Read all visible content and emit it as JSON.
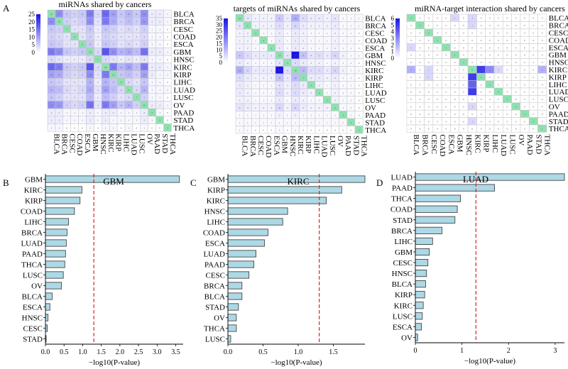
{
  "panel_labels": {
    "A": "A",
    "B": "B",
    "C": "C",
    "D": "D"
  },
  "chart_data": [
    {
      "type": "heatmap",
      "id": "heatmap-mirnas",
      "title": "miRNAs  shared by cancers",
      "rows": [
        "BLCA",
        "BRCA",
        "CESC",
        "COAD",
        "ESCA",
        "GBM",
        "HNSC",
        "KIRC",
        "KIRP",
        "LIHC",
        "LUAD",
        "LUSC",
        "OV",
        "PAAD",
        "STAD",
        "THCA"
      ],
      "cols": [
        "BLCA",
        "BRCA",
        "CESC",
        "COAD",
        "ESCA",
        "GBM",
        "HNSC",
        "KIRC",
        "KIRP",
        "LIHC",
        "LUAD",
        "LUSC",
        "OV",
        "PAAD",
        "STAD",
        "THCA"
      ],
      "colorbar": {
        "ticks": [
          "25",
          "20",
          "15",
          "10",
          "5",
          "0"
        ],
        "min": 0,
        "max": 25
      },
      "diagonal_color": "#8fe0b0",
      "matrix": [
        [
          16,
          12,
          6,
          5,
          6,
          14,
          4,
          16,
          10,
          6,
          8,
          6,
          12,
          2,
          2,
          1
        ],
        [
          12,
          16,
          5,
          4,
          5,
          12,
          3,
          14,
          9,
          5,
          7,
          5,
          11,
          2,
          2,
          1
        ],
        [
          6,
          5,
          7,
          3,
          3,
          6,
          2,
          6,
          5,
          3,
          4,
          3,
          5,
          1,
          1,
          0
        ],
        [
          5,
          4,
          3,
          6,
          3,
          5,
          2,
          5,
          4,
          3,
          3,
          3,
          4,
          1,
          1,
          0
        ],
        [
          6,
          5,
          3,
          3,
          6,
          6,
          2,
          6,
          5,
          3,
          4,
          3,
          5,
          1,
          1,
          0
        ],
        [
          14,
          12,
          6,
          5,
          6,
          22,
          4,
          18,
          12,
          8,
          9,
          7,
          15,
          2,
          2,
          1
        ],
        [
          4,
          3,
          2,
          2,
          2,
          4,
          5,
          4,
          3,
          2,
          3,
          2,
          3,
          1,
          1,
          0
        ],
        [
          16,
          14,
          6,
          5,
          6,
          18,
          4,
          24,
          14,
          8,
          10,
          7,
          14,
          2,
          2,
          1
        ],
        [
          10,
          9,
          5,
          4,
          5,
          12,
          3,
          14,
          14,
          6,
          7,
          5,
          10,
          2,
          1,
          1
        ],
        [
          6,
          5,
          3,
          3,
          3,
          8,
          2,
          8,
          6,
          9,
          4,
          3,
          6,
          1,
          1,
          0
        ],
        [
          8,
          7,
          4,
          3,
          4,
          9,
          3,
          10,
          7,
          4,
          11,
          4,
          8,
          1,
          1,
          1
        ],
        [
          6,
          5,
          3,
          3,
          3,
          7,
          2,
          7,
          5,
          3,
          4,
          7,
          5,
          1,
          1,
          0
        ],
        [
          12,
          11,
          5,
          4,
          5,
          15,
          3,
          14,
          10,
          6,
          8,
          5,
          16,
          2,
          2,
          1
        ],
        [
          2,
          2,
          1,
          1,
          1,
          2,
          1,
          2,
          2,
          1,
          1,
          1,
          2,
          3,
          1,
          0
        ],
        [
          2,
          2,
          1,
          1,
          1,
          2,
          1,
          2,
          1,
          1,
          1,
          1,
          2,
          1,
          3,
          0
        ],
        [
          1,
          1,
          0,
          0,
          0,
          1,
          0,
          1,
          1,
          0,
          1,
          0,
          1,
          0,
          0,
          2
        ]
      ]
    },
    {
      "type": "heatmap",
      "id": "heatmap-targets",
      "title": "targets of miRNAs shared by cancers",
      "rows": [
        "BLCA",
        "BRCA",
        "CESC",
        "COAD",
        "ESCA",
        "GBM",
        "HNSC",
        "KIRC",
        "KIRP",
        "LIHC",
        "LUAD",
        "LUSC",
        "OV",
        "PAAD",
        "STAD",
        "THCA"
      ],
      "cols": [
        "BLCA",
        "BRCA",
        "CESC",
        "COAD",
        "ESCA",
        "GBM",
        "HNSC",
        "KIRC",
        "KIRP",
        "LIHC",
        "LUAD",
        "LUSC",
        "OV",
        "PAAD",
        "STAD",
        "THCA"
      ],
      "colorbar": {
        "ticks": [
          "35",
          "30",
          "25",
          "20",
          "15",
          "10",
          "5",
          "0"
        ],
        "min": 0,
        "max": 35
      },
      "diagonal_color": "#8fe0b0",
      "matrix": [
        [
          10,
          4,
          2,
          2,
          2,
          8,
          3,
          12,
          5,
          3,
          3,
          2,
          4,
          1,
          1,
          1
        ],
        [
          4,
          6,
          2,
          2,
          2,
          5,
          2,
          6,
          3,
          2,
          2,
          2,
          3,
          1,
          1,
          1
        ],
        [
          2,
          2,
          4,
          1,
          1,
          3,
          1,
          3,
          2,
          1,
          1,
          1,
          2,
          1,
          1,
          0
        ],
        [
          2,
          2,
          1,
          4,
          1,
          3,
          1,
          3,
          2,
          1,
          1,
          1,
          2,
          1,
          1,
          0
        ],
        [
          2,
          2,
          1,
          1,
          4,
          3,
          1,
          3,
          2,
          1,
          1,
          1,
          2,
          1,
          1,
          0
        ],
        [
          8,
          5,
          3,
          3,
          3,
          18,
          4,
          35,
          9,
          4,
          5,
          3,
          6,
          2,
          1,
          1
        ],
        [
          3,
          2,
          1,
          1,
          1,
          4,
          5,
          5,
          3,
          2,
          2,
          1,
          2,
          1,
          1,
          0
        ],
        [
          12,
          6,
          3,
          3,
          3,
          35,
          5,
          30,
          10,
          5,
          5,
          3,
          6,
          2,
          1,
          1
        ],
        [
          5,
          3,
          2,
          2,
          2,
          9,
          3,
          10,
          7,
          3,
          3,
          2,
          3,
          1,
          1,
          0
        ],
        [
          3,
          2,
          1,
          1,
          1,
          4,
          2,
          5,
          3,
          4,
          2,
          1,
          2,
          1,
          1,
          0
        ],
        [
          3,
          2,
          1,
          1,
          1,
          5,
          2,
          5,
          3,
          2,
          4,
          1,
          2,
          1,
          1,
          0
        ],
        [
          2,
          2,
          1,
          1,
          1,
          3,
          1,
          3,
          2,
          1,
          1,
          3,
          2,
          1,
          1,
          0
        ],
        [
          4,
          3,
          2,
          2,
          2,
          6,
          2,
          6,
          3,
          2,
          2,
          2,
          4,
          1,
          1,
          0
        ],
        [
          1,
          1,
          1,
          1,
          1,
          2,
          1,
          2,
          1,
          1,
          1,
          1,
          1,
          3,
          1,
          0
        ],
        [
          1,
          1,
          1,
          1,
          1,
          1,
          1,
          1,
          1,
          1,
          1,
          1,
          1,
          1,
          3,
          0
        ],
        [
          1,
          1,
          0,
          0,
          0,
          1,
          0,
          1,
          0,
          0,
          0,
          0,
          0,
          0,
          0,
          2
        ]
      ]
    },
    {
      "type": "heatmap",
      "id": "heatmap-interactions",
      "title": "miRNA-target interaction shared by cancers",
      "rows": [
        "BLCA",
        "BRCA",
        "CESC",
        "COAD",
        "ESCA",
        "GBM",
        "HNSC",
        "KIRC",
        "KIRP",
        "LIHC",
        "LUAD",
        "LUSC",
        "OV",
        "PAAD",
        "STAD",
        "THCA"
      ],
      "cols": [
        "BLCA",
        "BRCA",
        "CESC",
        "COAD",
        "ESCA",
        "GBM",
        "HNSC",
        "KIRC",
        "KIRP",
        "LIHC",
        "LUAD",
        "LUSC",
        "OV",
        "PAAD",
        "STAD",
        "THCA"
      ],
      "colorbar": {
        "ticks": [
          "6",
          "5",
          "4",
          "3",
          "2",
          "1",
          "0"
        ],
        "min": 0,
        "max": 6
      },
      "diagonal_color": "#8fe0b0",
      "matrix": [
        [
          3,
          0,
          0,
          0,
          0,
          1,
          0,
          1,
          0,
          0,
          0,
          0,
          0,
          0,
          0,
          0
        ],
        [
          0,
          2,
          0,
          0,
          0,
          0,
          0,
          1,
          0,
          0,
          0,
          0,
          0,
          0,
          0,
          0
        ],
        [
          0,
          0,
          2,
          0,
          0,
          0,
          0,
          0,
          0,
          0,
          0,
          0,
          0,
          0,
          0,
          0
        ],
        [
          0,
          0,
          0,
          1,
          0,
          0,
          0,
          0,
          0,
          0,
          0,
          0,
          0,
          0,
          0,
          0
        ],
        [
          1,
          0,
          0,
          0,
          1,
          0,
          0,
          0,
          0,
          0,
          0,
          0,
          0,
          0,
          0,
          0
        ],
        [
          0,
          0,
          0,
          0,
          0,
          1,
          0,
          0,
          0,
          0,
          0,
          0,
          0,
          0,
          0,
          0
        ],
        [
          0,
          0,
          0,
          0,
          0,
          0,
          1,
          0,
          0,
          0,
          0,
          0,
          0,
          0,
          0,
          0
        ],
        [
          2,
          0,
          1,
          0,
          0,
          0,
          0,
          6,
          5,
          3,
          1,
          0,
          0,
          0,
          0,
          2
        ],
        [
          0,
          0,
          1,
          0,
          0,
          0,
          0,
          5,
          2,
          0,
          0,
          0,
          0,
          0,
          0,
          0
        ],
        [
          0,
          0,
          0,
          0,
          0,
          0,
          0,
          4,
          0,
          2,
          0,
          0,
          0,
          0,
          0,
          0
        ],
        [
          0,
          0,
          0,
          0,
          0,
          0,
          0,
          5,
          0,
          0,
          2,
          0,
          0,
          0,
          0,
          0
        ],
        [
          0,
          0,
          0,
          0,
          0,
          0,
          0,
          0,
          0,
          0,
          0,
          1,
          0,
          0,
          0,
          0
        ],
        [
          0,
          0,
          0,
          0,
          0,
          0,
          0,
          1,
          0,
          0,
          0,
          0,
          2,
          0,
          0,
          0
        ],
        [
          0,
          0,
          0,
          0,
          0,
          0,
          0,
          0,
          0,
          0,
          0,
          0,
          0,
          1,
          0,
          0
        ],
        [
          0,
          0,
          0,
          0,
          0,
          0,
          0,
          1,
          0,
          0,
          0,
          0,
          0,
          0,
          1,
          0
        ],
        [
          0,
          0,
          0,
          0,
          0,
          0,
          0,
          0,
          0,
          0,
          0,
          0,
          0,
          0,
          0,
          1
        ]
      ]
    },
    {
      "type": "bar",
      "orientation": "horizontal",
      "id": "bar-gbm",
      "title": "GBM",
      "xlabel": "−log10(P-value)",
      "categories": [
        "GBM",
        "KIRC",
        "KIRP",
        "COAD",
        "LIHC",
        "BRCA",
        "LUAD",
        "PAAD",
        "THCA",
        "LUSC",
        "OV",
        "BLCA",
        "ESCA",
        "HNSC",
        "CESC",
        "STAD"
      ],
      "values": [
        3.6,
        0.98,
        0.93,
        0.78,
        0.62,
        0.58,
        0.56,
        0.54,
        0.52,
        0.48,
        0.43,
        0.18,
        0.12,
        0.07,
        0.05,
        0.02
      ],
      "xlim": [
        0,
        3.7
      ],
      "xticks": [
        0,
        0.5,
        1.0,
        1.5,
        2.0,
        2.5,
        3.0,
        3.5
      ],
      "xtick_labels": [
        "0.0",
        "0.5",
        "1.0",
        "1.5",
        "2.0",
        "2.5",
        "3.0",
        "3.5"
      ],
      "threshold": 1.3
    },
    {
      "type": "bar",
      "orientation": "horizontal",
      "id": "bar-kirc",
      "title": "KIRC",
      "xlabel": "−log10(P-value)",
      "categories": [
        "GBM",
        "KIRP",
        "KIRC",
        "HNSC",
        "LIHC",
        "COAD",
        "ESCA",
        "LUAD",
        "PAAD",
        "CESC",
        "BRCA",
        "BLCA",
        "STAD",
        "OV",
        "THCA",
        "LUSC"
      ],
      "values": [
        1.95,
        1.62,
        1.4,
        0.85,
        0.78,
        0.57,
        0.52,
        0.4,
        0.37,
        0.3,
        0.2,
        0.2,
        0.15,
        0.12,
        0.12,
        0.04
      ],
      "xlim": [
        0,
        1.95
      ],
      "xticks": [
        0,
        0.5,
        1.0,
        1.5
      ],
      "xtick_labels": [
        "0.0",
        "0.5",
        "1.0",
        "1.5"
      ],
      "threshold": 1.3
    },
    {
      "type": "bar",
      "orientation": "horizontal",
      "id": "bar-luad",
      "title": "LUAD",
      "xlabel": "−log10(P-value)",
      "categories": [
        "LUAD",
        "PAAD",
        "THCA",
        "COAD",
        "STAD",
        "BRCA",
        "LIHC",
        "GBM",
        "CESC",
        "HNSC",
        "BLCA",
        "KIRP",
        "KIRC",
        "LUSC",
        "ESCA",
        "OV"
      ],
      "values": [
        3.2,
        1.7,
        0.97,
        0.9,
        0.85,
        0.57,
        0.37,
        0.3,
        0.27,
        0.24,
        0.22,
        0.2,
        0.17,
        0.15,
        0.13,
        0.05
      ],
      "xlim": [
        0,
        3.2
      ],
      "xticks": [
        0,
        1,
        2,
        3
      ],
      "xtick_labels": [
        "0",
        "1",
        "2",
        "3"
      ],
      "threshold": 1.3
    }
  ]
}
